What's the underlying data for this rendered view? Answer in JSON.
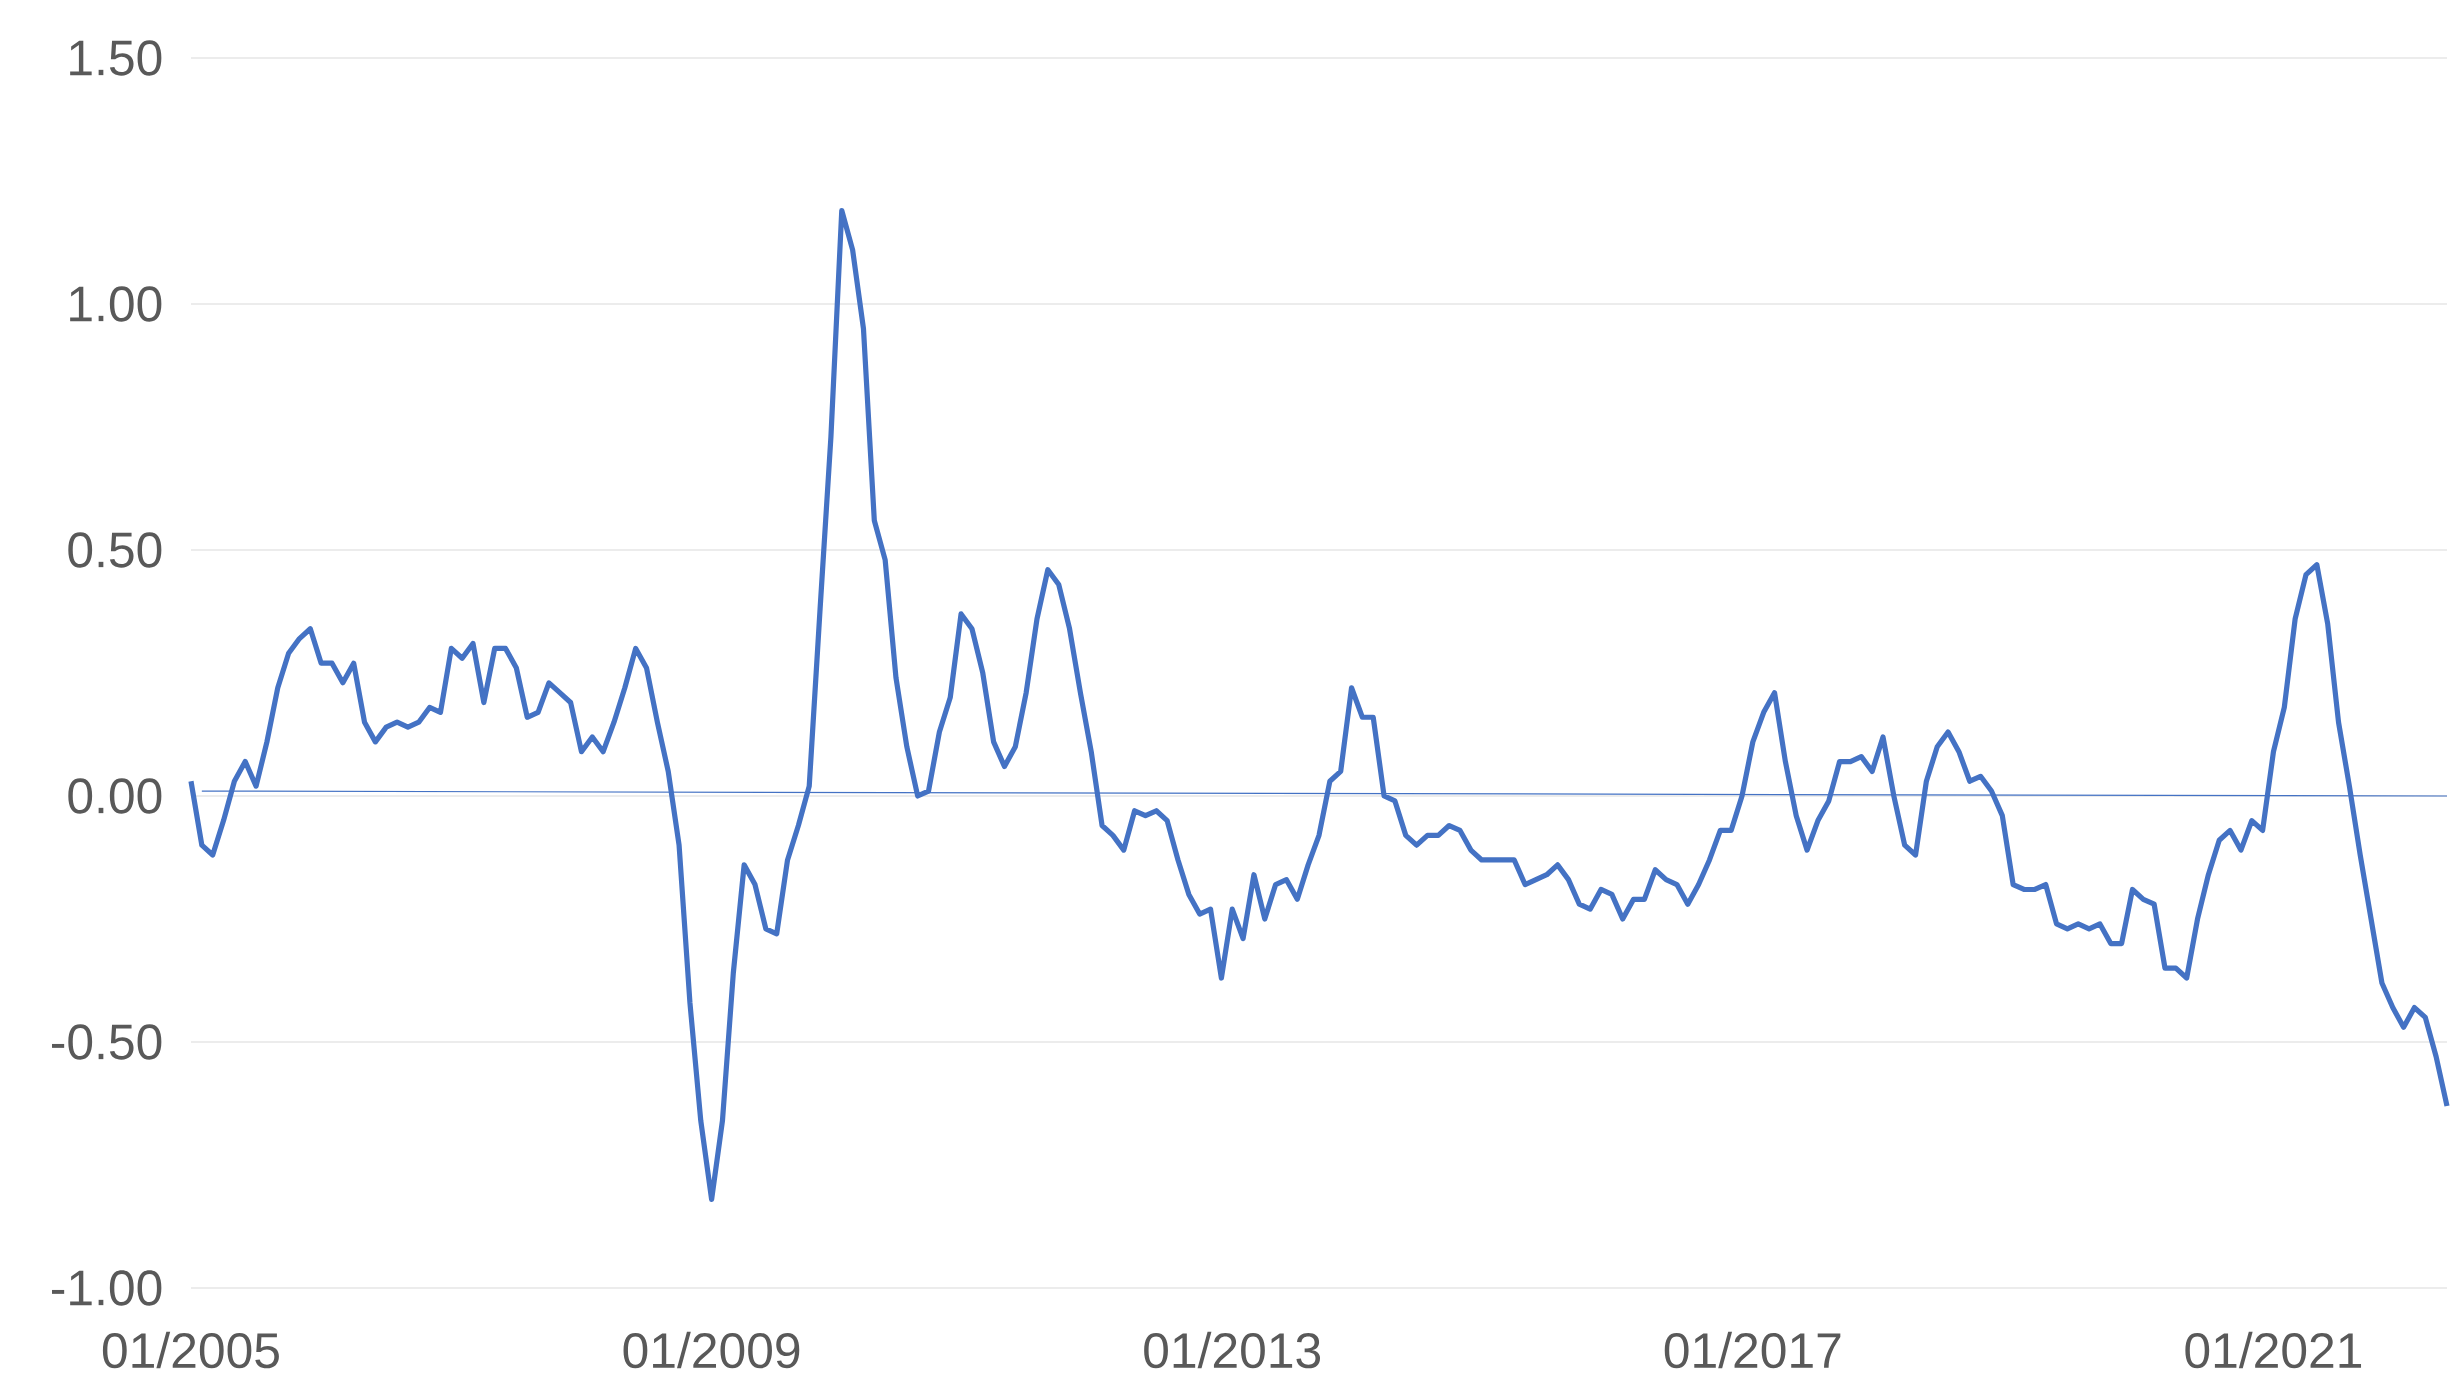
{
  "chart_data": {
    "type": "line",
    "x": [
      "2005-01",
      "2005-02",
      "2005-03",
      "2005-04",
      "2005-05",
      "2005-06",
      "2005-07",
      "2005-08",
      "2005-09",
      "2005-10",
      "2005-11",
      "2005-12",
      "2006-01",
      "2006-02",
      "2006-03",
      "2006-04",
      "2006-05",
      "2006-06",
      "2006-07",
      "2006-08",
      "2006-09",
      "2006-10",
      "2006-11",
      "2006-12",
      "2007-01",
      "2007-02",
      "2007-03",
      "2007-04",
      "2007-05",
      "2007-06",
      "2007-07",
      "2007-08",
      "2007-09",
      "2007-10",
      "2007-11",
      "2007-12",
      "2008-01",
      "2008-02",
      "2008-03",
      "2008-04",
      "2008-05",
      "2008-06",
      "2008-07",
      "2008-08",
      "2008-09",
      "2008-10",
      "2008-11",
      "2008-12",
      "2009-01",
      "2009-02",
      "2009-03",
      "2009-04",
      "2009-05",
      "2009-06",
      "2009-07",
      "2009-08",
      "2009-09",
      "2009-10",
      "2009-11",
      "2009-12",
      "2010-01",
      "2010-02",
      "2010-03",
      "2010-04",
      "2010-05",
      "2010-06",
      "2010-07",
      "2010-08",
      "2010-09",
      "2010-10",
      "2010-11",
      "2010-12",
      "2011-01",
      "2011-02",
      "2011-03",
      "2011-04",
      "2011-05",
      "2011-06",
      "2011-07",
      "2011-08",
      "2011-09",
      "2011-10",
      "2011-11",
      "2011-12",
      "2012-01",
      "2012-02",
      "2012-03",
      "2012-04",
      "2012-05",
      "2012-06",
      "2012-07",
      "2012-08",
      "2012-09",
      "2012-10",
      "2012-11",
      "2012-12",
      "2013-01",
      "2013-02",
      "2013-03",
      "2013-04",
      "2013-05",
      "2013-06",
      "2013-07",
      "2013-08",
      "2013-09",
      "2013-10",
      "2013-11",
      "2013-12",
      "2014-01",
      "2014-02",
      "2014-03",
      "2014-04",
      "2014-05",
      "2014-06",
      "2014-07",
      "2014-08",
      "2014-09",
      "2014-10",
      "2014-11",
      "2014-12",
      "2015-01",
      "2015-02",
      "2015-03",
      "2015-04",
      "2015-05",
      "2015-06",
      "2015-07",
      "2015-08",
      "2015-09",
      "2015-10",
      "2015-11",
      "2015-12",
      "2016-01",
      "2016-02",
      "2016-03",
      "2016-04",
      "2016-05",
      "2016-06",
      "2016-07",
      "2016-08",
      "2016-09",
      "2016-10",
      "2016-11",
      "2016-12",
      "2017-01",
      "2017-02",
      "2017-03",
      "2017-04",
      "2017-05",
      "2017-06",
      "2017-07",
      "2017-08",
      "2017-09",
      "2017-10",
      "2017-11",
      "2017-12",
      "2018-01",
      "2018-02",
      "2018-03",
      "2018-04",
      "2018-05",
      "2018-06",
      "2018-07",
      "2018-08",
      "2018-09",
      "2018-10",
      "2018-11",
      "2018-12",
      "2019-01",
      "2019-02",
      "2019-03",
      "2019-04",
      "2019-05",
      "2019-06",
      "2019-07",
      "2019-08",
      "2019-09",
      "2019-10",
      "2019-11",
      "2019-12",
      "2020-01",
      "2020-02",
      "2020-03",
      "2020-04",
      "2020-05",
      "2020-06",
      "2020-07",
      "2020-08",
      "2020-09",
      "2020-10",
      "2020-11",
      "2020-12",
      "2021-01",
      "2021-02",
      "2021-03",
      "2021-04",
      "2021-05",
      "2021-06",
      "2021-07",
      "2021-08",
      "2021-09",
      "2021-10",
      "2021-11",
      "2021-12",
      "2022-01",
      "2022-02",
      "2022-03",
      "2022-04",
      "2022-05"
    ],
    "series": [
      {
        "color": "#4472c4",
        "values": [
          0.03,
          -0.1,
          -0.12,
          -0.05,
          0.03,
          0.07,
          0.02,
          0.11,
          0.22,
          0.29,
          0.32,
          0.34,
          0.27,
          0.27,
          0.23,
          0.27,
          0.15,
          0.11,
          0.14,
          0.15,
          0.14,
          0.15,
          0.18,
          0.17,
          0.3,
          0.28,
          0.31,
          0.19,
          0.3,
          0.3,
          0.26,
          0.16,
          0.17,
          0.23,
          0.21,
          0.19,
          0.09,
          0.12,
          0.09,
          0.15,
          0.22,
          0.3,
          0.26,
          0.15,
          0.05,
          -0.1,
          -0.42,
          -0.66,
          -0.82,
          -0.66,
          -0.36,
          -0.14,
          -0.18,
          -0.27,
          -0.28,
          -0.13,
          -0.06,
          0.02,
          0.38,
          0.73,
          1.19,
          1.11,
          0.95,
          0.56,
          0.48,
          0.24,
          0.1,
          0.0,
          0.01,
          0.13,
          0.2,
          0.37,
          0.34,
          0.25,
          0.11,
          0.06,
          0.1,
          0.21,
          0.36,
          0.46,
          0.43,
          0.34,
          0.21,
          0.09,
          -0.06,
          -0.08,
          -0.11,
          -0.03,
          -0.04,
          -0.03,
          -0.05,
          -0.13,
          -0.2,
          -0.24,
          -0.23,
          -0.37,
          -0.23,
          -0.29,
          -0.16,
          -0.25,
          -0.18,
          -0.17,
          -0.21,
          -0.14,
          -0.08,
          0.03,
          0.05,
          0.22,
          0.16,
          0.16,
          0.0,
          -0.01,
          -0.08,
          -0.1,
          -0.08,
          -0.08,
          -0.06,
          -0.07,
          -0.11,
          -0.13,
          -0.13,
          -0.13,
          -0.13,
          -0.18,
          -0.17,
          -0.16,
          -0.14,
          -0.17,
          -0.22,
          -0.23,
          -0.19,
          -0.2,
          -0.25,
          -0.21,
          -0.21,
          -0.15,
          -0.17,
          -0.18,
          -0.22,
          -0.18,
          -0.13,
          -0.07,
          -0.07,
          0.0,
          0.11,
          0.17,
          0.21,
          0.07,
          -0.04,
          -0.11,
          -0.05,
          -0.01,
          0.07,
          0.07,
          0.08,
          0.05,
          0.12,
          0.0,
          -0.1,
          -0.12,
          0.03,
          0.1,
          0.13,
          0.09,
          0.03,
          0.04,
          0.01,
          -0.04,
          -0.18,
          -0.19,
          -0.19,
          -0.18,
          -0.26,
          -0.27,
          -0.26,
          -0.27,
          -0.26,
          -0.3,
          -0.3,
          -0.19,
          -0.21,
          -0.22,
          -0.35,
          -0.35,
          -0.37,
          -0.25,
          -0.16,
          -0.09,
          -0.07,
          -0.11,
          -0.05,
          -0.07,
          0.09,
          0.18,
          0.36,
          0.45,
          0.47,
          0.35,
          0.15,
          0.02,
          -0.12,
          -0.25,
          -0.38,
          -0.43,
          -0.47,
          -0.43,
          -0.45,
          -0.53,
          -0.63
        ]
      },
      {
        "color": "#4472c4",
        "x": [
          "2005-02",
          "2022-05"
        ],
        "values": [
          0.01,
          0.0
        ]
      }
    ],
    "xlim": [
      "2005-01",
      "2022-05"
    ],
    "xticks": [
      {
        "value": "2005-01",
        "label": "01/2005"
      },
      {
        "value": "2009-01",
        "label": "01/2009"
      },
      {
        "value": "2013-01",
        "label": "01/2013"
      },
      {
        "value": "2017-01",
        "label": "01/2017"
      },
      {
        "value": "2021-01",
        "label": "01/2021"
      }
    ],
    "ylim": [
      -1.0,
      1.5
    ],
    "yticks": [
      {
        "value": -1.0,
        "label": "-1.00"
      },
      {
        "value": -0.5,
        "label": "-0.50"
      },
      {
        "value": 0.0,
        "label": "0.00"
      },
      {
        "value": 0.5,
        "label": "0.50"
      },
      {
        "value": 1.0,
        "label": "1.00"
      },
      {
        "value": 1.5,
        "label": "1.50"
      }
    ],
    "grid": "y",
    "marker": "none",
    "line_style": "solid"
  }
}
